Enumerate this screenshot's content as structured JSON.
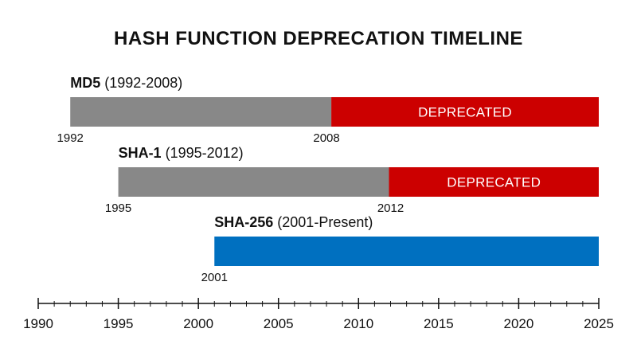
{
  "chart_data": {
    "type": "bar",
    "title": "HASH FUNCTION DEPRECATION TIMELINE",
    "x_range": [
      1990,
      2025
    ],
    "ticks": [
      1990,
      1995,
      2000,
      2005,
      2010,
      2015,
      2020,
      2025
    ],
    "tick_labels": [
      "1990",
      "1995",
      "2000",
      "2005",
      "2010",
      "2015",
      "2020",
      "2025"
    ],
    "minor_tick_step": 1,
    "colors": {
      "active": "#888888",
      "deprecated": "#cc0000",
      "current": "#0070c0"
    },
    "rows": [
      {
        "name": "MD5",
        "range_label": "(1992-2008)",
        "segments": [
          {
            "start": 1992,
            "end": 2008.3,
            "status": "active",
            "label": ""
          },
          {
            "start": 2008.3,
            "end": 2025,
            "status": "deprecated",
            "label": "DEPRECATED"
          }
        ],
        "year_labels": [
          {
            "value": 1992,
            "text": "1992"
          },
          {
            "value": 2008,
            "text": "2008"
          }
        ]
      },
      {
        "name": "SHA-1",
        "range_label": "(1995-2012)",
        "segments": [
          {
            "start": 1995,
            "end": 2011.9,
            "status": "active",
            "label": ""
          },
          {
            "start": 2011.9,
            "end": 2025,
            "status": "deprecated",
            "label": "DEPRECATED"
          }
        ],
        "year_labels": [
          {
            "value": 1995,
            "text": "1995"
          },
          {
            "value": 2012,
            "text": "2012"
          }
        ]
      },
      {
        "name": "SHA-256",
        "range_label": "(2001-Present)",
        "segments": [
          {
            "start": 2001,
            "end": 2025,
            "status": "current",
            "label": ""
          }
        ],
        "year_labels": [
          {
            "value": 2001,
            "text": "2001"
          }
        ]
      }
    ]
  }
}
